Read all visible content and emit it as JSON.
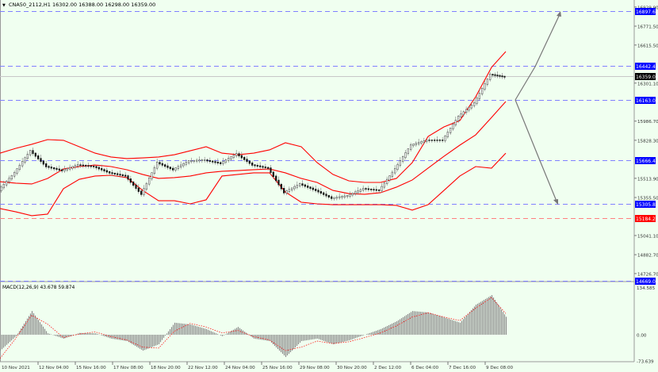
{
  "header": {
    "symbol": "CNA50_2112,H1",
    "ohlc": "16302.00 16388.00 16298.00 16359.00"
  },
  "macd": {
    "label": "MACD(12,26,9) 43.678 59.874",
    "axis_labels": [
      "134.585",
      "0.00",
      "-73.639"
    ]
  },
  "colors": {
    "background": "#f0fff0",
    "bands": "#ff0000",
    "level_blue": "#0000ff",
    "level_red": "#ff0000",
    "current_price": "#000000",
    "histogram": "#8c8c8c",
    "signal": "#ff0000"
  },
  "chart_data": [
    {
      "type": "line",
      "title": "",
      "symbol": "CNA50_2112,H1",
      "x_tick_labels": [
        "10 Nov 2021",
        "12 Nov 04:00",
        "15 Nov 16:00",
        "17 Nov 08:00",
        "18 Nov 20:00",
        "22 Nov 12:00",
        "24 Nov 04:00",
        "25 Nov 16:00",
        "29 Nov 08:00",
        "30 Nov 20:00",
        "2 Dec 12:00",
        "6 Dec 04:00",
        "7 Dec 16:00",
        "9 Dec 08:00"
      ],
      "y_tick_labels": [
        "16929.90",
        "16771.50",
        "16615.50",
        "16301.10",
        "15986.70",
        "15828.30",
        "15513.90",
        "15355.50",
        "15041.10",
        "14882.70",
        "14726.70"
      ],
      "ylim": [
        14669.06,
        16929.9
      ],
      "series": [
        {
          "kind": "price",
          "values": [
            15414,
            15559,
            15742,
            15611,
            15578,
            15624,
            15611,
            15559,
            15533,
            15382,
            15644,
            15585,
            15657,
            15664,
            15637,
            15716,
            15624,
            15598,
            15395,
            15467,
            15414,
            15349,
            15369,
            15428,
            15414,
            15591,
            15788,
            15828,
            15828,
            16024,
            16136,
            16372,
            16352
          ]
        },
        {
          "kind": "bollinger-upper",
          "values": [
            15722,
            15762,
            15795,
            15834,
            15828,
            15775,
            15722,
            15690,
            15677,
            15683,
            15690,
            15709,
            15742,
            15775,
            15722,
            15709,
            15722,
            15749,
            15808,
            15775,
            15644,
            15546,
            15493,
            15480,
            15480,
            15513,
            15644,
            15860,
            15939,
            15991,
            16188,
            16431,
            16562
          ]
        },
        {
          "kind": "bollinger-middle",
          "values": [
            15486,
            15474,
            15467,
            15513,
            15591,
            15611,
            15624,
            15611,
            15585,
            15546,
            15513,
            15520,
            15533,
            15559,
            15572,
            15578,
            15585,
            15591,
            15559,
            15513,
            15480,
            15414,
            15388,
            15382,
            15395,
            15441,
            15500,
            15598,
            15696,
            15788,
            15873,
            16017,
            16149
          ]
        },
        {
          "kind": "bollinger-lower",
          "values": [
            15264,
            15237,
            15205,
            15218,
            15428,
            15506,
            15533,
            15539,
            15520,
            15414,
            15329,
            15329,
            15303,
            15336,
            15533,
            15546,
            15559,
            15559,
            15401,
            15316,
            15303,
            15296,
            15296,
            15296,
            15296,
            15290,
            15251,
            15296,
            15414,
            15533,
            15611,
            15598,
            15722
          ]
        }
      ],
      "levels": [
        {
          "price": "16897.60",
          "color": "#0000ff"
        },
        {
          "price": "16442.48",
          "color": "#0000ff"
        },
        {
          "price": "16163.00",
          "color": "#0000ff"
        },
        {
          "price": "15666.41",
          "color": "#0000ff"
        },
        {
          "price": "15305.81",
          "color": "#0000ff"
        },
        {
          "price": "15184.26",
          "color": "#ff0000"
        },
        {
          "price": "14669.06",
          "color": "#0000ff"
        }
      ],
      "current_price": "16359.00"
    },
    {
      "type": "bar",
      "title": "MACD(12,26,9)",
      "ylim": [
        -73.639,
        134.585
      ],
      "series": [
        {
          "kind": "macd-histogram",
          "values": [
            -45,
            -4,
            67,
            4,
            -11,
            5,
            4,
            -11,
            -18,
            -45,
            -27,
            34,
            29,
            16,
            -4,
            22,
            -11,
            -18,
            -63,
            -18,
            -11,
            -27,
            -16,
            0,
            16,
            38,
            67,
            63,
            49,
            34,
            85,
            112,
            44
          ]
        },
        {
          "kind": "signal",
          "values": [
            -67,
            -10,
            55,
            30,
            -8,
            2,
            8,
            -5,
            -15,
            -35,
            -38,
            10,
            32,
            22,
            5,
            12,
            -5,
            -15,
            -45,
            -35,
            -18,
            -25,
            -20,
            -8,
            5,
            25,
            50,
            62,
            50,
            40,
            75,
            105,
            60
          ]
        }
      ]
    }
  ]
}
